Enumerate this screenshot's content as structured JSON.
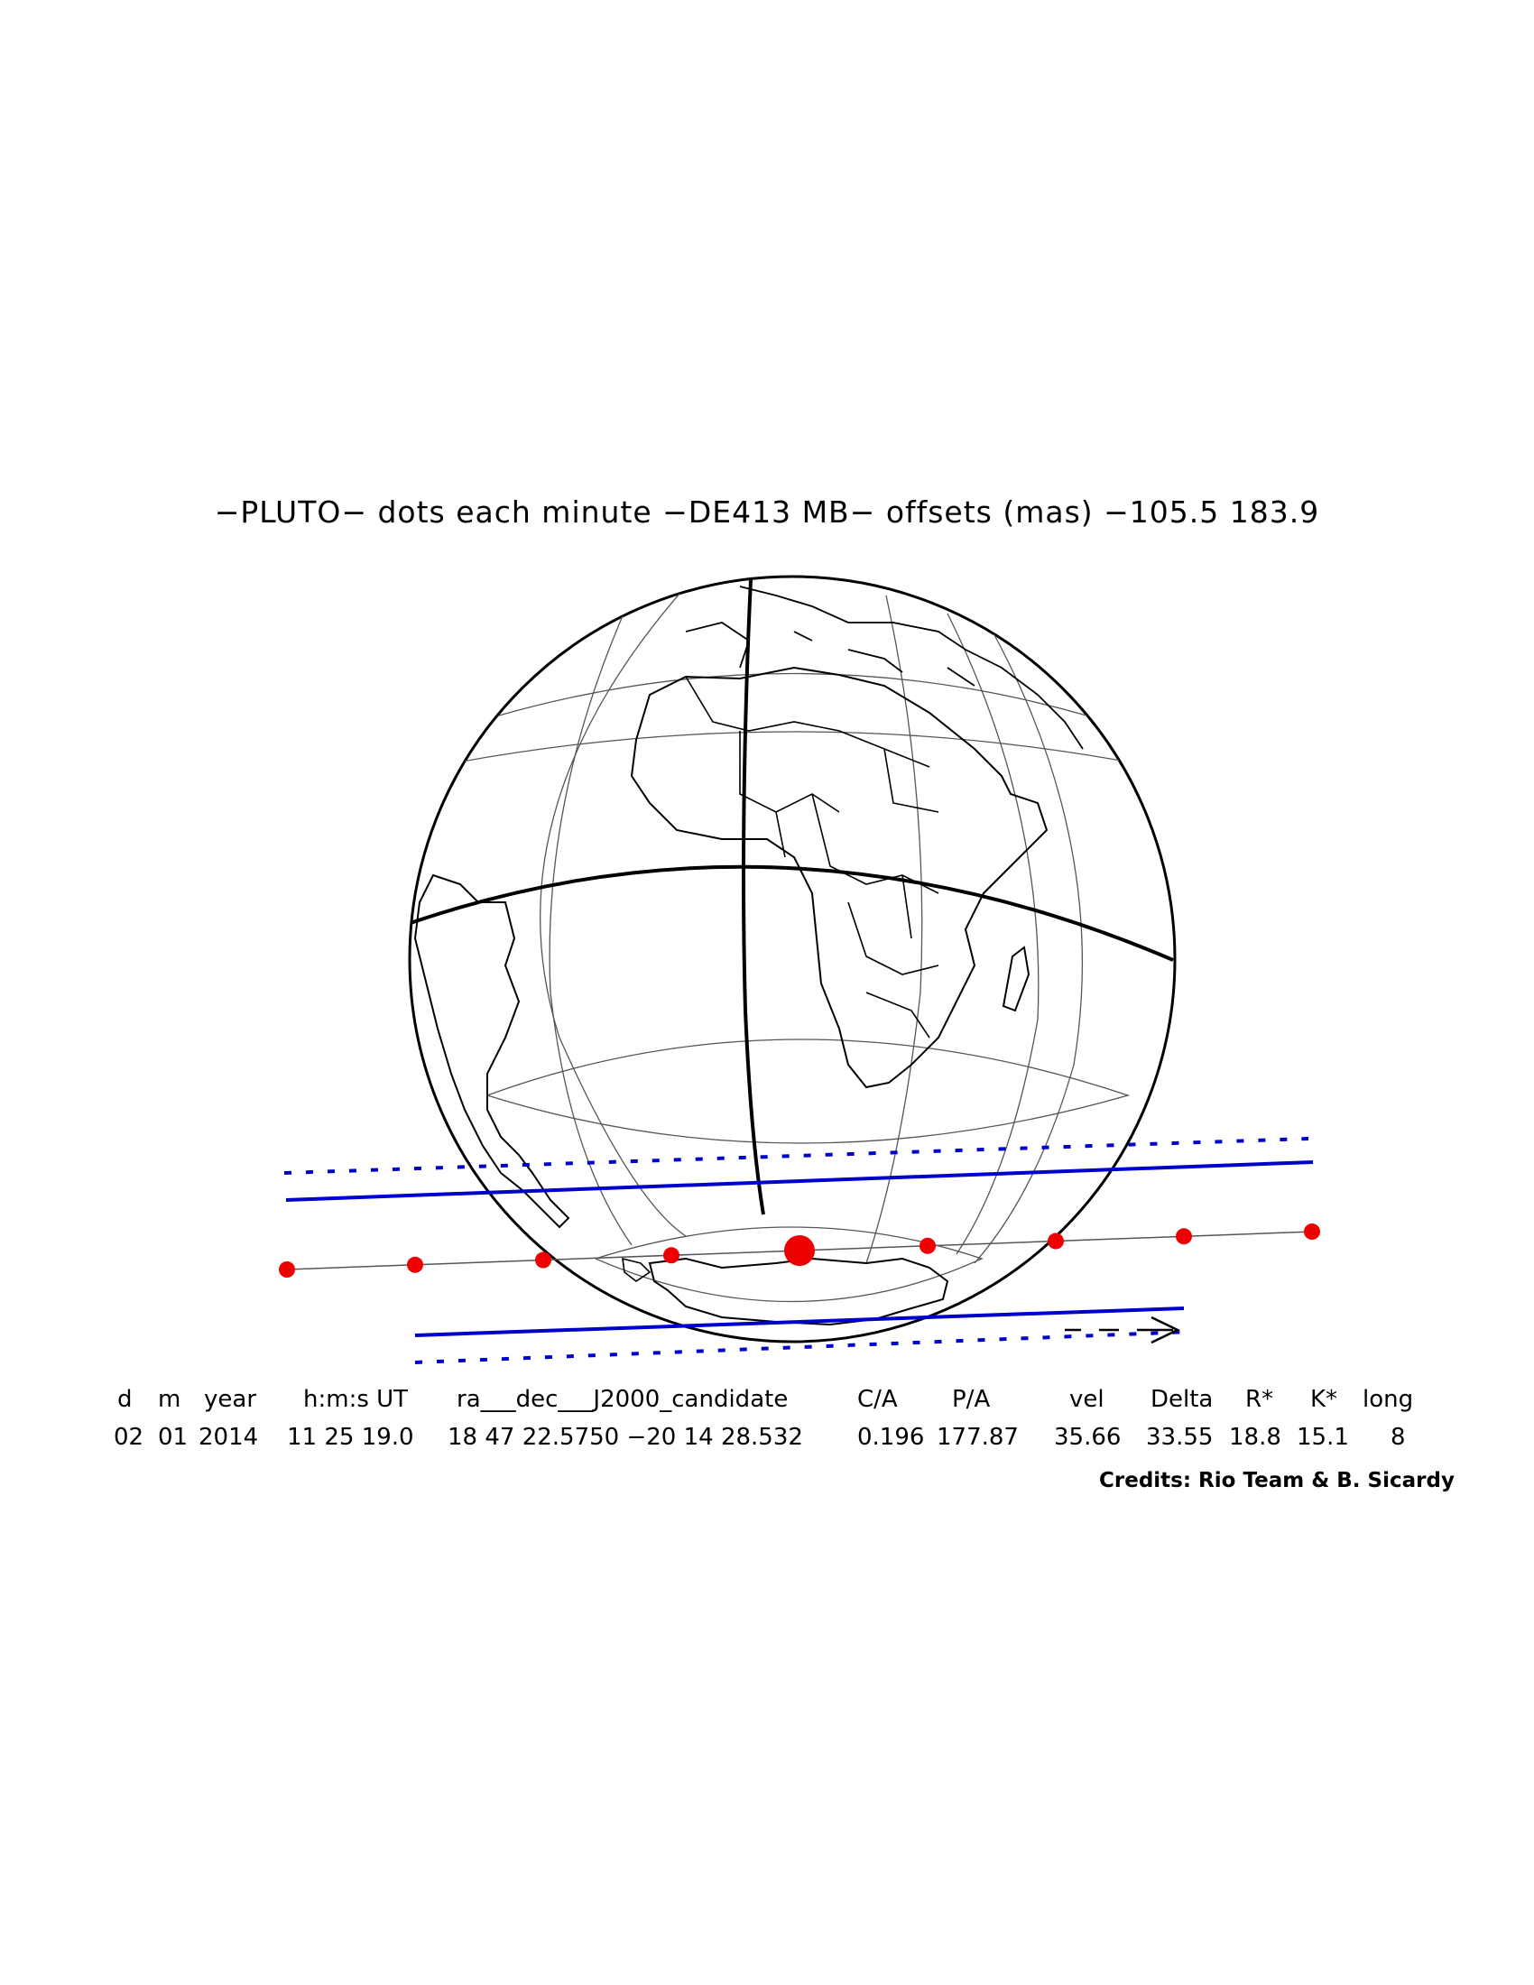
{
  "title": "−PLUTO− dots each minute −DE413 MB− offsets (mas) −105.5   183.9",
  "table": {
    "headers": [
      "d",
      "m",
      "year",
      "h:m:s UT",
      "ra___dec___J2000_candidate",
      "C/A",
      "P/A",
      "vel",
      "Delta",
      "R*",
      "K*",
      "long"
    ],
    "values": [
      "02",
      "01",
      "2014",
      "11 25 19.0",
      "18 47 22.5750 −20 14 28.532",
      "0.196",
      "177.87",
      "35.66",
      "33.55",
      "18.8",
      "15.1",
      "8"
    ]
  },
  "credits": "Credits: Rio Team & B. Sicardy",
  "colors": {
    "globe_outline": "#000000",
    "grid": "#555555",
    "shadow_limits": "#0000cc",
    "center_line": "#555555",
    "time_dots": "#ee0000"
  },
  "map": {
    "projection": "orthographic",
    "time_dot_interval": "each minute",
    "central_dot_highlighted": true,
    "motion_direction_icon": "arrow-right-icon"
  }
}
